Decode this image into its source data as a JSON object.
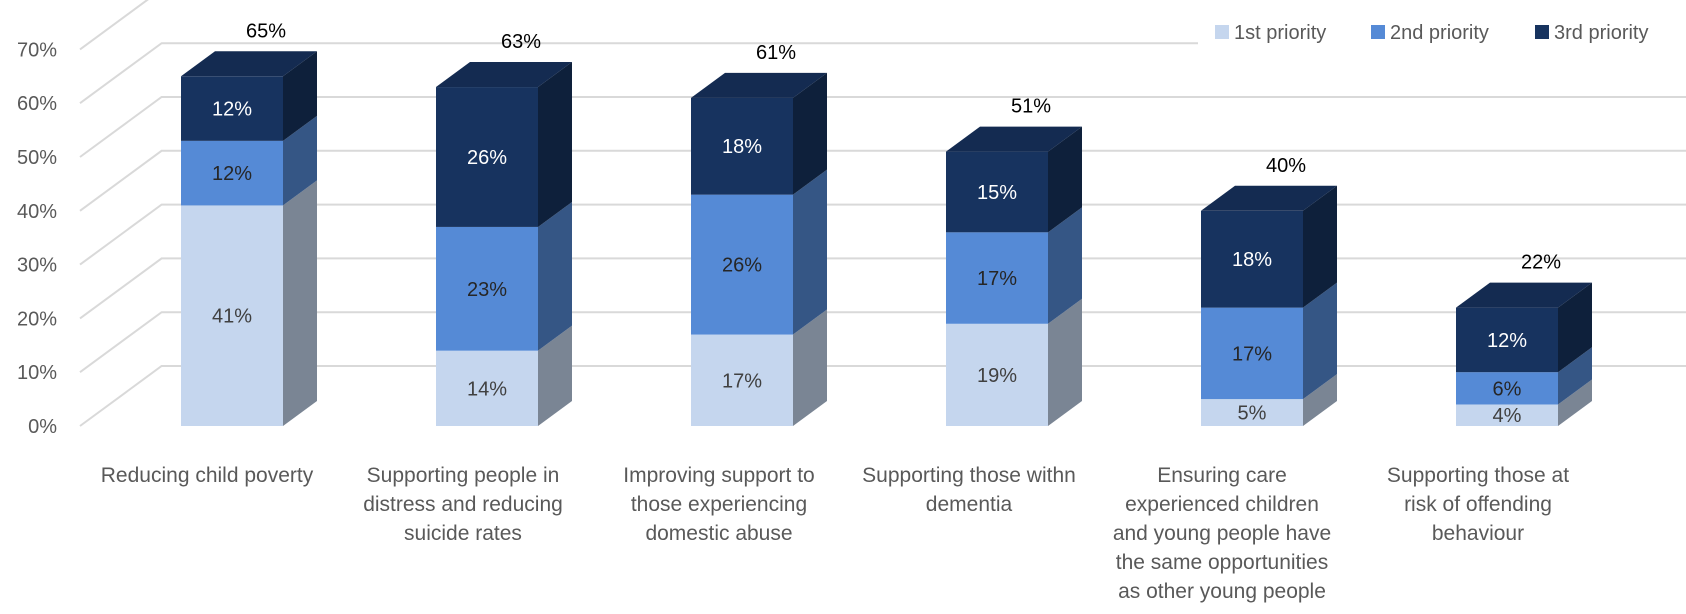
{
  "chart_data": {
    "type": "bar",
    "stacked": true,
    "three_d": true,
    "categories": [
      [
        "Reducing child poverty"
      ],
      [
        "Supporting people in",
        "distress and reducing",
        "suicide rates"
      ],
      [
        "Improving support to",
        "those experiencing",
        "domestic abuse"
      ],
      [
        "Supporting those withn",
        "dementia"
      ],
      [
        "Ensuring care",
        "experienced children",
        "and young people have",
        "the same opportunities",
        "as other young people"
      ],
      [
        "Supporting those at",
        "risk of offending",
        "behaviour"
      ]
    ],
    "series": [
      {
        "name": "1st priority",
        "values": [
          41,
          14,
          17,
          19,
          5,
          4
        ],
        "color": "#c5d6ee",
        "label_color": "#404040"
      },
      {
        "name": "2nd priority",
        "values": [
          12,
          23,
          26,
          17,
          17,
          6
        ],
        "color": "#558ad6",
        "label_color": "#262626"
      },
      {
        "name": "3rd priority",
        "values": [
          12,
          26,
          18,
          15,
          18,
          12
        ],
        "color": "#17335f",
        "label_color": "#ffffff"
      }
    ],
    "totals": [
      65,
      63,
      61,
      51,
      40,
      22
    ],
    "value_suffix": "%",
    "ylim": [
      0,
      70
    ],
    "yticks": [
      "0%",
      "10%",
      "20%",
      "30%",
      "40%",
      "50%",
      "60%",
      "70%"
    ],
    "grid": true,
    "legend_position": "top-right"
  }
}
